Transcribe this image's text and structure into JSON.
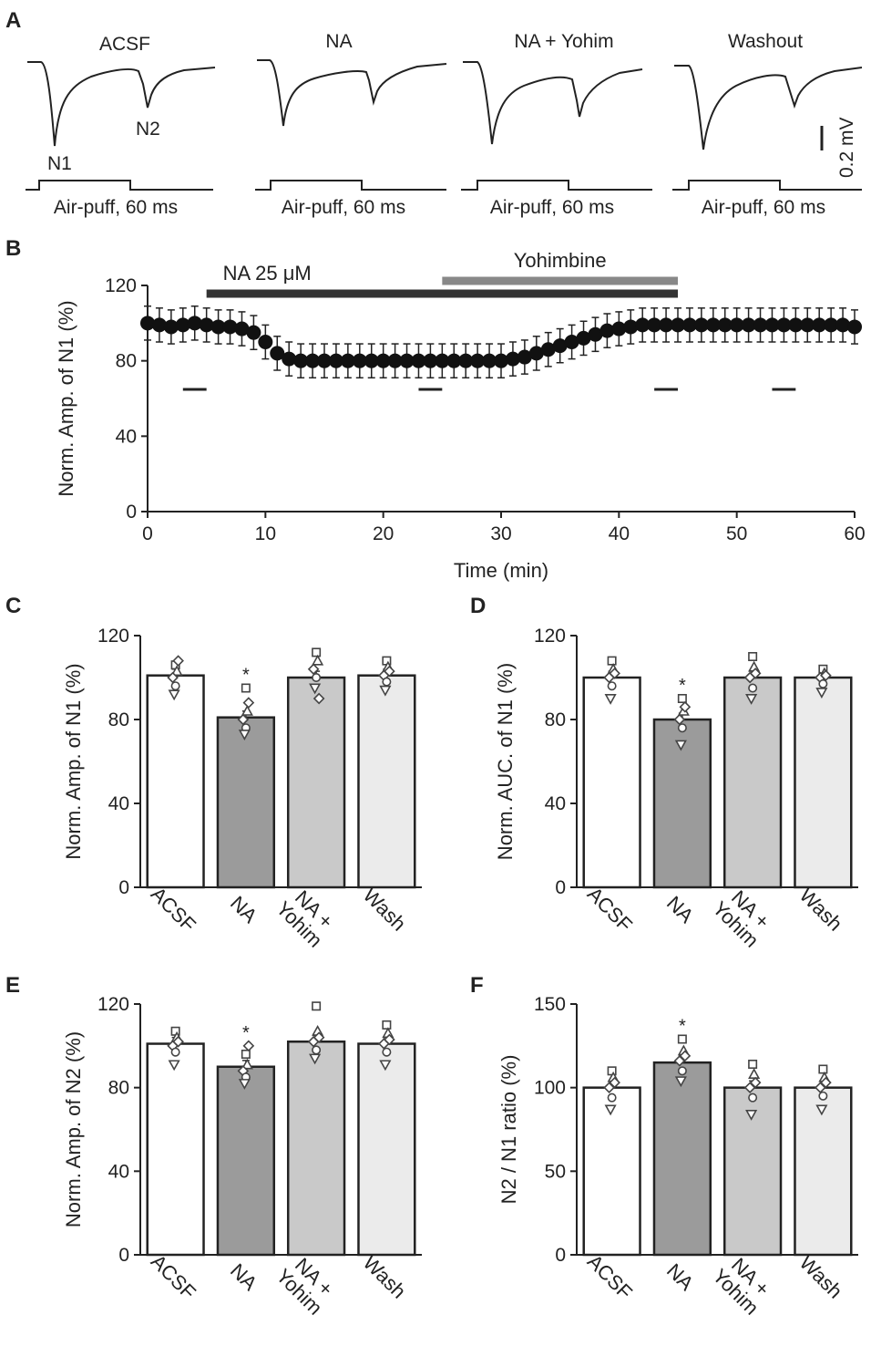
{
  "panel_a": {
    "label": "A",
    "conditions": [
      "ACSF",
      "NA",
      "NA + Yohim",
      "Washout"
    ],
    "stimulus_label": "Air-puff, 60 ms",
    "peak_labels": [
      "N1",
      "N2"
    ],
    "scale_bar_label": "0.2 mV"
  },
  "chart_data": [
    {
      "id": "B",
      "type": "line",
      "panel_label": "B",
      "xlabel": "Time (min)",
      "ylabel": "Norm. Amp. of N1 (%)",
      "xlim": [
        0,
        60
      ],
      "ylim": [
        0,
        120
      ],
      "xticks": [
        0,
        10,
        20,
        30,
        40,
        50,
        60
      ],
      "yticks": [
        0,
        40,
        80,
        120
      ],
      "treatment_bars": [
        {
          "label": "NA 25 μM",
          "start": 5,
          "end": 45,
          "color": "#333333"
        },
        {
          "label": "Yohimbine",
          "start": 25,
          "end": 45,
          "color": "#888888"
        }
      ],
      "analysis_windows": [
        [
          3,
          5
        ],
        [
          23,
          25
        ],
        [
          43,
          45
        ],
        [
          53,
          55
        ]
      ],
      "x": [
        0,
        1,
        2,
        3,
        4,
        5,
        6,
        7,
        8,
        9,
        10,
        11,
        12,
        13,
        14,
        15,
        16,
        17,
        18,
        19,
        20,
        21,
        22,
        23,
        24,
        25,
        26,
        27,
        28,
        29,
        30,
        31,
        32,
        33,
        34,
        35,
        36,
        37,
        38,
        39,
        40,
        41,
        42,
        43,
        44,
        45,
        46,
        47,
        48,
        49,
        50,
        51,
        52,
        53,
        54,
        55,
        56,
        57,
        58,
        59,
        60
      ],
      "values": [
        100,
        99,
        98,
        99,
        100,
        99,
        98,
        98,
        97,
        95,
        90,
        84,
        81,
        80,
        80,
        80,
        80,
        80,
        80,
        80,
        80,
        80,
        80,
        80,
        80,
        80,
        80,
        80,
        80,
        80,
        80,
        81,
        82,
        84,
        86,
        88,
        90,
        92,
        94,
        96,
        97,
        98,
        99,
        99,
        99,
        99,
        99,
        99,
        99,
        99,
        99,
        99,
        99,
        99,
        99,
        99,
        99,
        99,
        99,
        99,
        98
      ],
      "error": 9
    },
    {
      "id": "C",
      "type": "bar",
      "panel_label": "C",
      "ylabel": "Norm. Amp. of  N1 (%)",
      "categories": [
        "ACSF",
        "NA",
        "NA +\nYohim",
        "Wash"
      ],
      "values": [
        101,
        81,
        100,
        101
      ],
      "errors": [
        3,
        3,
        3,
        3
      ],
      "significance": [
        "",
        "*",
        "",
        ""
      ],
      "ylim": [
        0,
        120
      ],
      "yticks": [
        0,
        40,
        80,
        120
      ],
      "bar_colors": [
        "#ffffff",
        "#9b9b9b",
        "#c9c9c9",
        "#ebebeb"
      ],
      "points": [
        [
          106,
          103,
          100,
          96,
          92,
          108
        ],
        [
          95,
          84,
          80,
          76,
          73,
          88
        ],
        [
          112,
          108,
          104,
          100,
          95,
          90
        ],
        [
          108,
          105,
          101,
          98,
          94,
          103
        ]
      ]
    },
    {
      "id": "D",
      "type": "bar",
      "panel_label": "D",
      "ylabel": "Norm. AUC. of N1 (%)",
      "categories": [
        "ACSF",
        "NA",
        "NA +\nYohim",
        "Wash"
      ],
      "values": [
        100,
        80,
        100,
        100
      ],
      "errors": [
        3,
        3,
        3,
        3
      ],
      "significance": [
        "",
        "*",
        "",
        ""
      ],
      "ylim": [
        0,
        120
      ],
      "yticks": [
        0,
        40,
        80,
        120
      ],
      "bar_colors": [
        "#ffffff",
        "#9b9b9b",
        "#c9c9c9",
        "#ebebeb"
      ],
      "points": [
        [
          108,
          104,
          100,
          96,
          90,
          102
        ],
        [
          90,
          84,
          80,
          76,
          68,
          86
        ],
        [
          110,
          105,
          100,
          95,
          90,
          102
        ],
        [
          104,
          102,
          100,
          97,
          93,
          101
        ]
      ]
    },
    {
      "id": "E",
      "type": "bar",
      "panel_label": "E",
      "ylabel": "Norm. Amp. of N2 (%)",
      "categories": [
        "ACSF",
        "NA",
        "NA +\nYohim",
        "Wash"
      ],
      "values": [
        101,
        90,
        102,
        101
      ],
      "errors": [
        3,
        3,
        3,
        3
      ],
      "significance": [
        "",
        "*",
        "",
        ""
      ],
      "ylim": [
        0,
        120
      ],
      "yticks": [
        0,
        40,
        80,
        120
      ],
      "bar_colors": [
        "#ffffff",
        "#9b9b9b",
        "#c9c9c9",
        "#ebebeb"
      ],
      "points": [
        [
          107,
          104,
          100,
          97,
          91,
          102
        ],
        [
          96,
          91,
          88,
          85,
          82,
          100
        ],
        [
          119,
          107,
          102,
          98,
          94,
          104
        ],
        [
          110,
          106,
          101,
          97,
          91,
          103
        ]
      ]
    },
    {
      "id": "F",
      "type": "bar",
      "panel_label": "F",
      "ylabel": "N2 / N1 ratio (%)",
      "categories": [
        "ACSF",
        "NA",
        "NA +\nYohim",
        "Wash"
      ],
      "values": [
        100,
        115,
        100,
        100
      ],
      "errors": [
        4,
        4,
        4,
        4
      ],
      "significance": [
        "",
        "*",
        "",
        ""
      ],
      "ylim": [
        0,
        150
      ],
      "yticks": [
        0,
        50,
        100,
        150
      ],
      "bar_colors": [
        "#ffffff",
        "#9b9b9b",
        "#c9c9c9",
        "#ebebeb"
      ],
      "points": [
        [
          110,
          106,
          100,
          94,
          87,
          103
        ],
        [
          129,
          122,
          116,
          110,
          104,
          119
        ],
        [
          114,
          108,
          100,
          94,
          84,
          103
        ],
        [
          111,
          106,
          100,
          95,
          87,
          103
        ]
      ]
    }
  ]
}
